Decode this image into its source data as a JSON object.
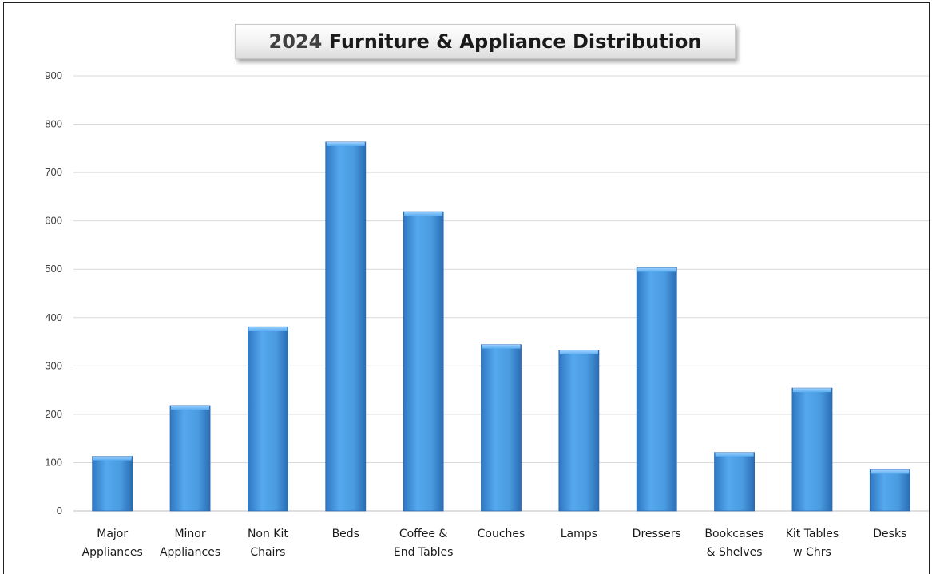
{
  "chart_data": {
    "type": "bar",
    "title_year": "2024",
    "title_rest": "Furniture & Appliance Distribution",
    "categories": [
      [
        "Major",
        "Appliances"
      ],
      [
        "Minor",
        "Appliances"
      ],
      [
        "Non Kit",
        "Chairs"
      ],
      [
        "Beds"
      ],
      [
        "Coffee &",
        "End Tables"
      ],
      [
        "Couches"
      ],
      [
        "Lamps"
      ],
      [
        "Dressers"
      ],
      [
        "Bookcases",
        "& Shelves"
      ],
      [
        "Kit Tables",
        "w Chrs"
      ],
      [
        "Desks"
      ]
    ],
    "values": [
      113,
      218,
      381,
      763,
      619,
      344,
      332,
      503,
      121,
      254,
      85
    ],
    "ylim": [
      0,
      900
    ],
    "yticks": [
      0,
      100,
      200,
      300,
      400,
      500,
      600,
      700,
      800,
      900
    ],
    "grid": true,
    "legend": "none",
    "bar_color": "#4a9be0"
  }
}
